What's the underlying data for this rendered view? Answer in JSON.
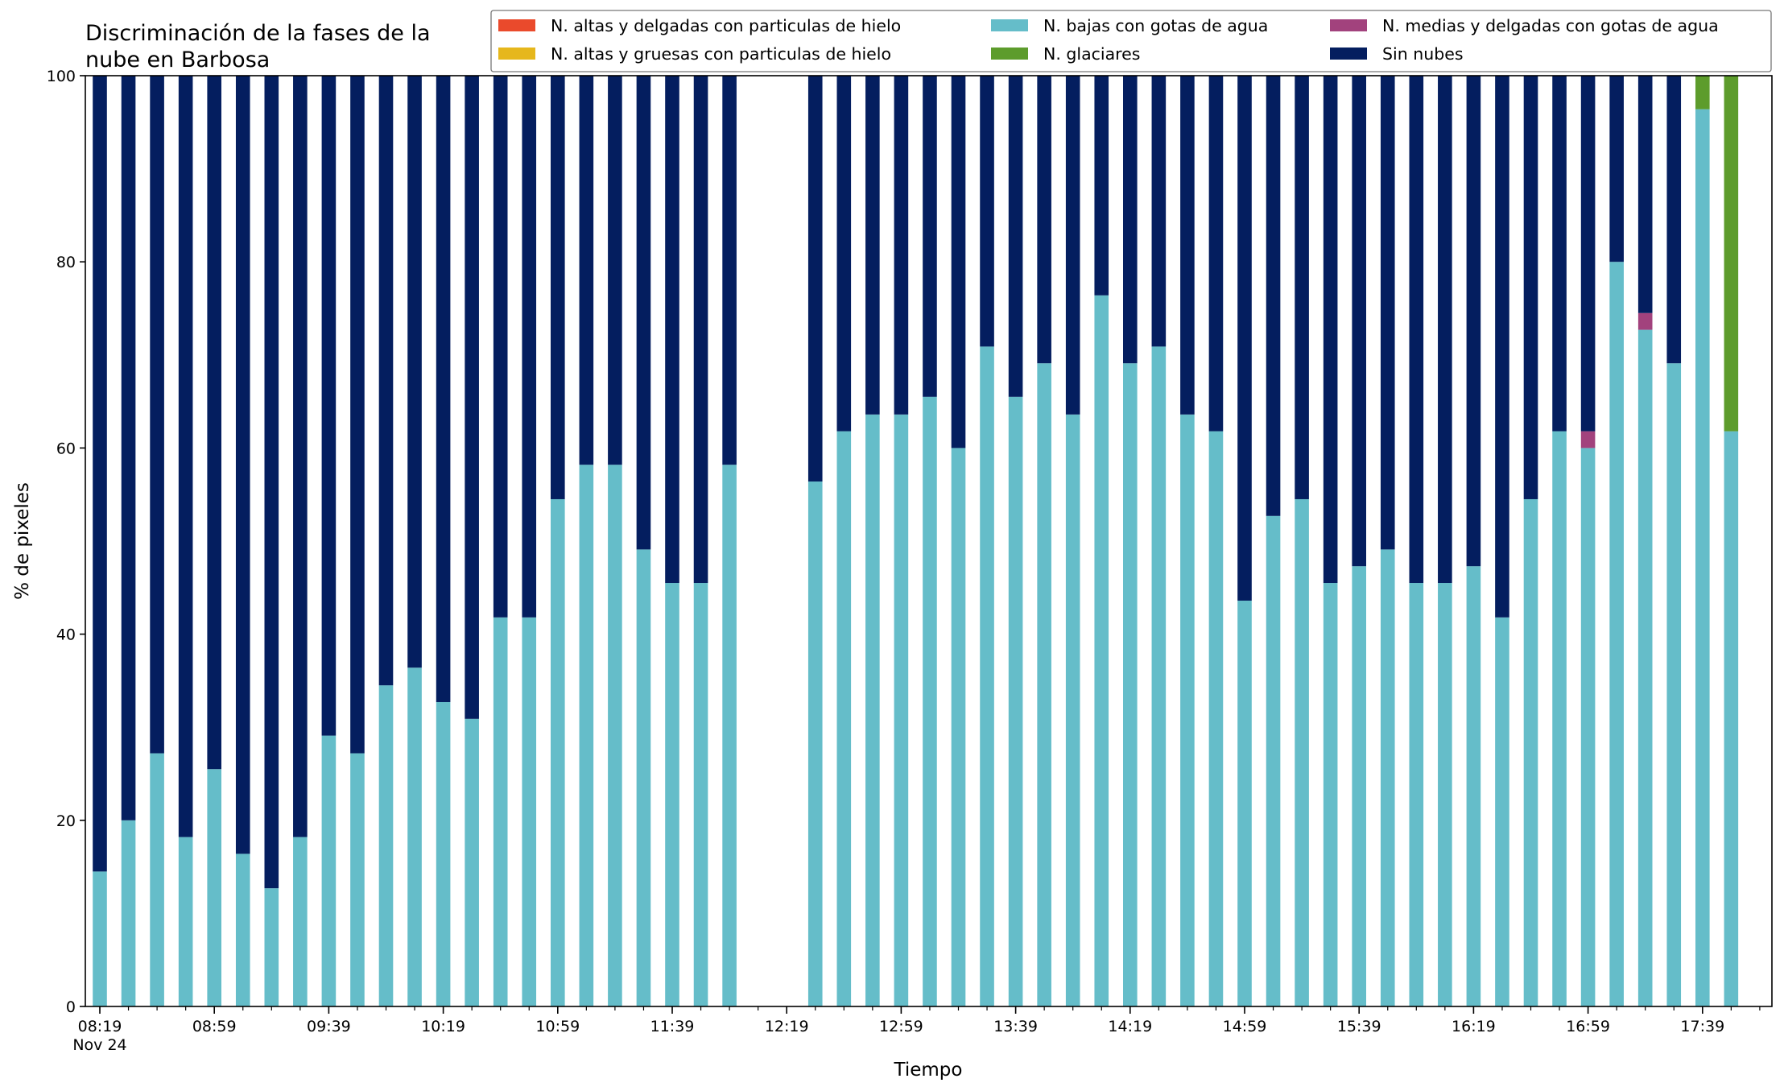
{
  "chart_data": {
    "type": "bar",
    "stacked": true,
    "title": "Discriminación de la fases de la nube en Barbosa",
    "xlabel": "Tiempo",
    "ylabel": "% de pixeles",
    "ylim": [
      0,
      100
    ],
    "yticks": [
      0,
      20,
      40,
      60,
      80,
      100
    ],
    "grid": false,
    "legend_position": "top",
    "x_start": "08:19",
    "x_step_minutes": 10,
    "x_tick_labels": [
      "08:19",
      "08:59",
      "09:39",
      "10:19",
      "10:59",
      "11:39",
      "12:19",
      "12:59",
      "13:39",
      "14:19",
      "14:59",
      "15:39",
      "16:19",
      "16:59",
      "17:39"
    ],
    "x_date_label": "Nov 24",
    "categories": [
      "08:19",
      "08:29",
      "08:39",
      "08:49",
      "08:59",
      "09:09",
      "09:19",
      "09:29",
      "09:39",
      "09:49",
      "09:59",
      "10:09",
      "10:19",
      "10:29",
      "10:39",
      "10:49",
      "10:59",
      "11:09",
      "11:19",
      "11:29",
      "11:39",
      "11:49",
      "11:59",
      "12:09",
      "12:19",
      "12:29",
      "12:39",
      "12:49",
      "12:59",
      "13:09",
      "13:19",
      "13:29",
      "13:39",
      "13:49",
      "13:59",
      "14:09",
      "14:19",
      "14:29",
      "14:39",
      "14:49",
      "14:59",
      "15:09",
      "15:19",
      "15:29",
      "15:39",
      "15:49",
      "15:59",
      "16:09",
      "16:19",
      "16:29",
      "16:39",
      "16:49",
      "16:59",
      "17:09",
      "17:19",
      "17:29",
      "17:39",
      "17:49"
    ],
    "series": [
      {
        "name": "N. altas y delgadas con particulas de hielo",
        "color": "#ea4a2c",
        "values": [
          0,
          0,
          0,
          0,
          0,
          0,
          0,
          0,
          0,
          0,
          0,
          0,
          0,
          0,
          0,
          0,
          0,
          0,
          0,
          0,
          0,
          0,
          0,
          null,
          null,
          0,
          0,
          0,
          0,
          0,
          0,
          0,
          0,
          0,
          0,
          0,
          0,
          0,
          0,
          0,
          0,
          0,
          0,
          0,
          0,
          0,
          0,
          0,
          0,
          0,
          0,
          0,
          0,
          0,
          0,
          0,
          0,
          0
        ]
      },
      {
        "name": "N. altas y gruesas con particulas de hielo",
        "color": "#e6b71c",
        "values": [
          0,
          0,
          0,
          0,
          0,
          0,
          0,
          0,
          0,
          0,
          0,
          0,
          0,
          0,
          0,
          0,
          0,
          0,
          0,
          0,
          0,
          0,
          0,
          null,
          null,
          0,
          0,
          0,
          0,
          0,
          0,
          0,
          0,
          0,
          0,
          0,
          0,
          0,
          0,
          0,
          0,
          0,
          0,
          0,
          0,
          0,
          0,
          0,
          0,
          0,
          0,
          0,
          0,
          0,
          0,
          0,
          0,
          0
        ]
      },
      {
        "name": "N. bajas con gotas de agua",
        "color": "#65bdc9",
        "values": [
          14.5,
          20,
          27.2,
          18.2,
          25.5,
          16.4,
          12.7,
          18.2,
          29.1,
          27.2,
          34.5,
          36.4,
          32.7,
          30.9,
          41.8,
          41.8,
          54.5,
          58.2,
          58.2,
          49.1,
          45.5,
          45.5,
          58.2,
          null,
          null,
          56.4,
          61.8,
          63.6,
          63.6,
          65.5,
          60,
          70.9,
          65.5,
          69.1,
          63.6,
          76.4,
          69.1,
          70.9,
          63.6,
          61.8,
          43.6,
          52.7,
          54.5,
          45.5,
          47.3,
          49.1,
          45.5,
          45.5,
          47.3,
          41.8,
          54.5,
          61.8,
          60,
          80,
          72.7,
          69.1,
          96.4,
          61.8
        ]
      },
      {
        "name": "N. glaciares",
        "color": "#5d9c2c",
        "values": [
          0,
          0,
          0,
          0,
          0,
          0,
          0,
          0,
          0,
          0,
          0,
          0,
          0,
          0,
          0,
          0,
          0,
          0,
          0,
          0,
          0,
          0,
          0,
          null,
          null,
          0,
          0,
          0,
          0,
          0,
          0,
          0,
          0,
          0,
          0,
          0,
          0,
          0,
          0,
          0,
          0,
          0,
          0,
          0,
          0,
          0,
          0,
          0,
          0,
          0,
          0,
          0,
          0,
          0,
          0,
          0,
          3.6,
          38.2
        ]
      },
      {
        "name": "N. medias y delgadas con gotas de agua",
        "color": "#a2427d",
        "values": [
          0,
          0,
          0,
          0,
          0,
          0,
          0,
          0,
          0,
          0,
          0,
          0,
          0,
          0,
          0,
          0,
          0,
          0,
          0,
          0,
          0,
          0,
          0,
          null,
          null,
          0,
          0,
          0,
          0,
          0,
          0,
          0,
          0,
          0,
          0,
          0,
          0,
          0,
          0,
          0,
          0,
          0,
          0,
          0,
          0,
          0,
          0,
          0,
          0,
          0,
          0,
          0,
          1.8,
          0,
          1.8,
          0,
          0,
          0
        ]
      },
      {
        "name": "Sin nubes",
        "color": "#041e5f",
        "values": [
          85.5,
          80,
          72.8,
          81.8,
          74.5,
          83.6,
          87.3,
          81.8,
          70.9,
          72.8,
          65.5,
          63.6,
          67.3,
          69.1,
          58.2,
          58.2,
          45.5,
          41.8,
          41.8,
          50.9,
          54.5,
          54.5,
          41.8,
          null,
          null,
          43.6,
          38.2,
          36.4,
          36.4,
          34.5,
          40,
          29.1,
          34.5,
          30.9,
          36.4,
          23.6,
          30.9,
          29.1,
          36.4,
          38.2,
          56.4,
          47.3,
          45.5,
          54.5,
          52.7,
          50.9,
          54.5,
          54.5,
          52.7,
          58.2,
          45.5,
          38.2,
          38.2,
          20,
          25.5,
          30.9,
          0,
          0
        ]
      }
    ],
    "legend_order": [
      "N. altas y delgadas con particulas de hielo",
      "N. altas y gruesas con particulas de hielo",
      "N. bajas con gotas de agua",
      "N. glaciares",
      "N. medias y delgadas con gotas de agua",
      "Sin nubes"
    ]
  }
}
